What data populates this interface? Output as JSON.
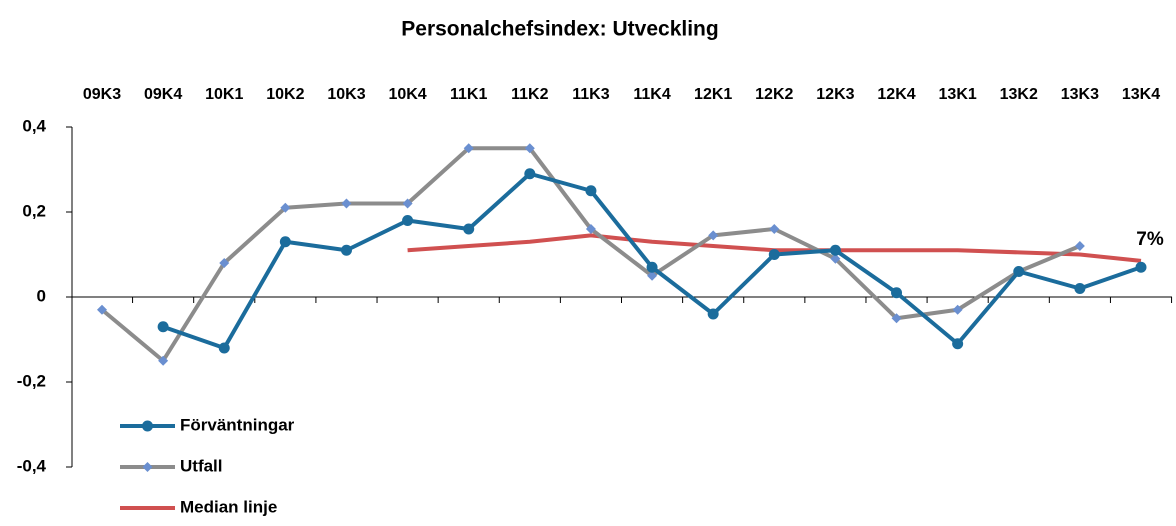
{
  "chart_data": {
    "type": "line",
    "title": "Personalchefsindex: Utveckling",
    "categories": [
      "09K3",
      "09K4",
      "10K1",
      "10K2",
      "10K3",
      "10K4",
      "11K1",
      "11K2",
      "11K3",
      "11K4",
      "12K1",
      "12K2",
      "12K3",
      "12K4",
      "13K1",
      "13K2",
      "13K3",
      "13K4"
    ],
    "series": [
      {
        "name": "Förväntningar",
        "color": "#1b6c9c",
        "marker": "circle",
        "marker_color": "#1b6c9c",
        "values": [
          null,
          -0.07,
          -0.12,
          0.13,
          0.11,
          0.18,
          0.16,
          0.29,
          0.25,
          0.07,
          -0.04,
          0.1,
          0.11,
          0.01,
          -0.11,
          0.06,
          0.02,
          0.07
        ]
      },
      {
        "name": "Utfall",
        "color": "#8c8c8c",
        "marker": "diamond",
        "marker_color": "#6a8fd0",
        "values": [
          -0.03,
          -0.15,
          0.08,
          0.21,
          0.22,
          0.22,
          0.35,
          0.35,
          0.16,
          0.05,
          0.145,
          0.16,
          0.09,
          -0.05,
          -0.03,
          0.06,
          0.12,
          null
        ]
      },
      {
        "name": "Median linje",
        "color": "#d05050",
        "marker": "none",
        "marker_color": "#d05050",
        "values": [
          null,
          null,
          null,
          null,
          null,
          0.11,
          0.12,
          0.13,
          0.145,
          0.13,
          0.12,
          0.11,
          0.11,
          0.11,
          0.11,
          0.105,
          0.1,
          0.085
        ]
      }
    ],
    "ylim": [
      -0.4,
      0.4
    ],
    "yticks": [
      {
        "value": -0.4,
        "label": "-0,4"
      },
      {
        "value": -0.2,
        "label": "-0,2"
      },
      0,
      {
        "value": 0.2,
        "label": "0,2"
      },
      {
        "value": 0.4,
        "label": "0,4"
      }
    ],
    "annotation": "7%",
    "legend": "bottom-left"
  }
}
